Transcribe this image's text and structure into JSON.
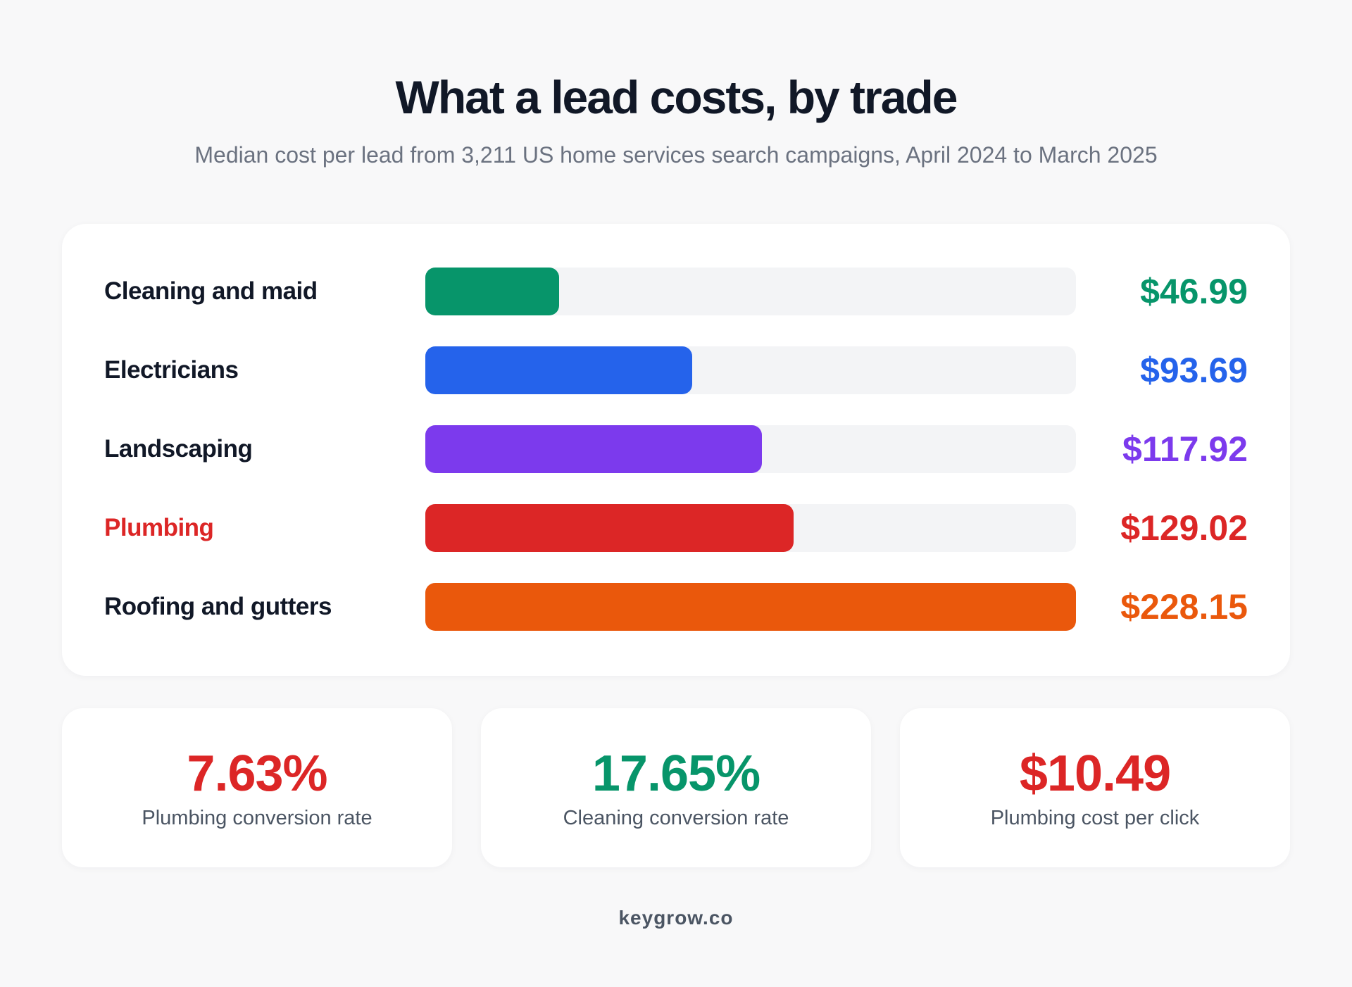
{
  "header": {
    "title": "What a lead costs, by trade",
    "subtitle": "Median cost per lead from 3,211 US home services search campaigns, April 2024 to March 2025"
  },
  "chart_data": {
    "type": "bar",
    "orientation": "horizontal",
    "categories": [
      "Cleaning and maid",
      "Electricians",
      "Landscaping",
      "Plumbing",
      "Roofing and gutters"
    ],
    "values": [
      46.99,
      93.69,
      117.92,
      129.02,
      228.15
    ],
    "value_labels": [
      "$46.99",
      "$93.69",
      "$117.92",
      "$129.02",
      "$228.15"
    ],
    "colors": [
      "#07956a",
      "#2563eb",
      "#7c3aed",
      "#dc2626",
      "#ea580c"
    ],
    "label_colors": [
      "#111827",
      "#111827",
      "#111827",
      "#dc2626",
      "#111827"
    ],
    "xlim": [
      0,
      228.15
    ]
  },
  "stats": [
    {
      "value": "7.63%",
      "label": "Plumbing conversion rate",
      "color": "#dc2626"
    },
    {
      "value": "17.65%",
      "label": "Cleaning conversion rate",
      "color": "#07956a"
    },
    {
      "value": "$10.49",
      "label": "Plumbing cost per click",
      "color": "#dc2626"
    }
  ],
  "footer": {
    "source": "keygrow.co"
  }
}
